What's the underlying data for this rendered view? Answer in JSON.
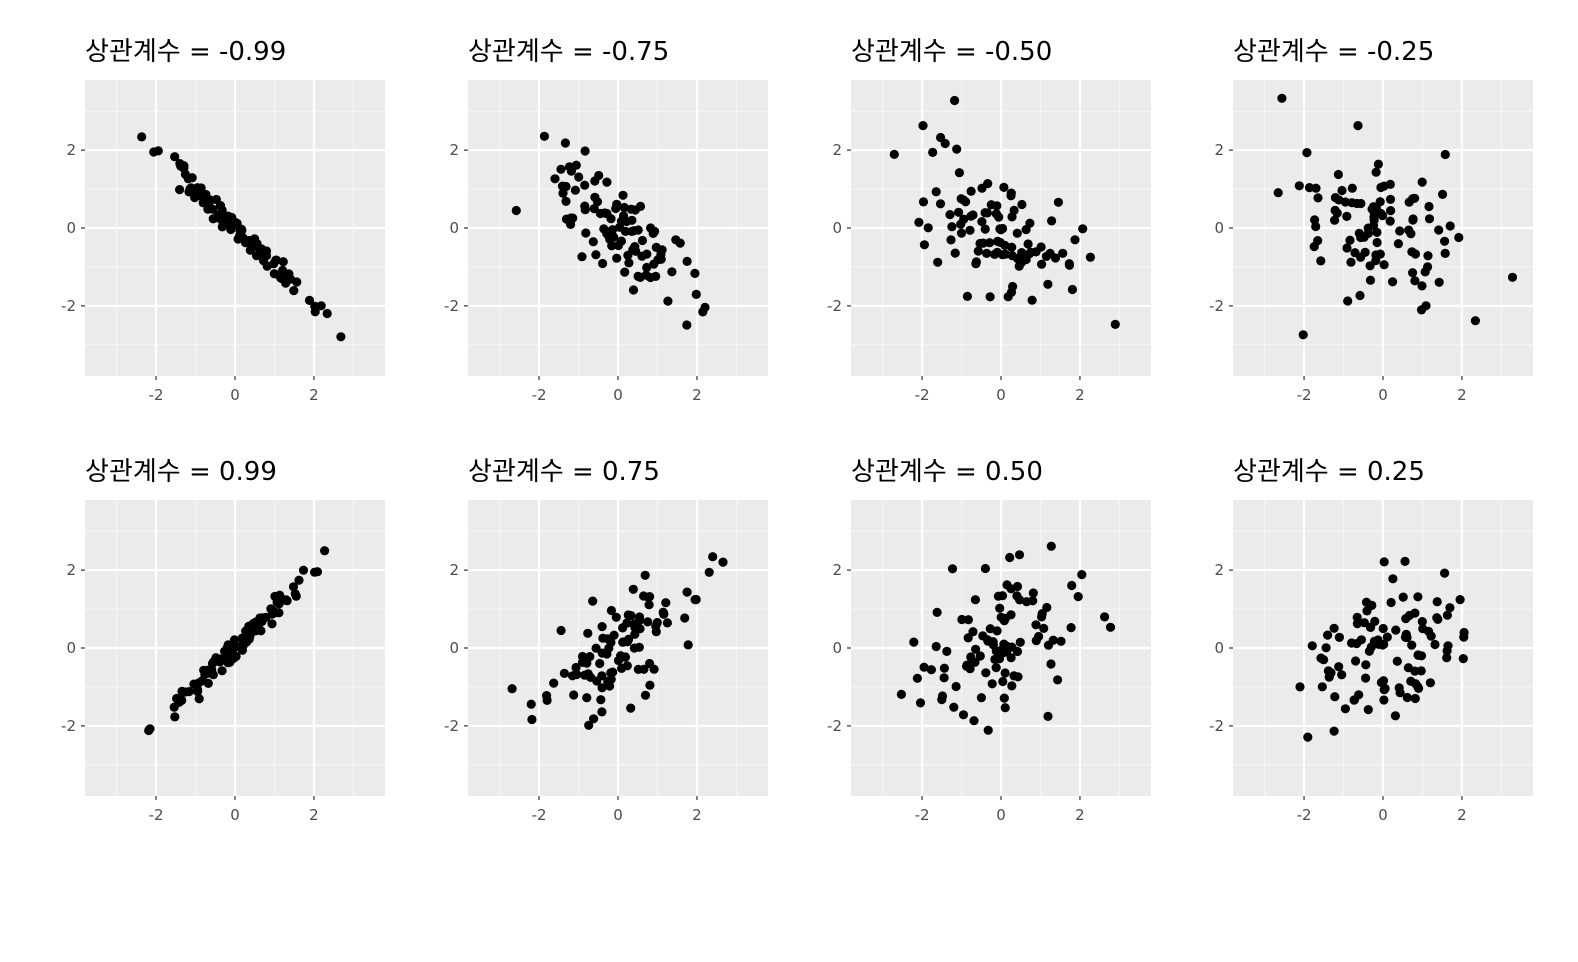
{
  "chart_data": [
    {
      "type": "scatter",
      "title": "상관계수 = -0.99",
      "rho": -0.99,
      "n": 100,
      "seed": 11,
      "xlim": [
        -3.8,
        3.8
      ],
      "ylim": [
        -3.8,
        3.8
      ],
      "xticks": [
        "-2",
        "0",
        "2"
      ],
      "yticks": [
        "2",
        "0",
        "-2"
      ],
      "colors": {
        "point": "#000000",
        "panel": "#ebebeb",
        "grid": "#ffffff"
      },
      "grid": true
    },
    {
      "type": "scatter",
      "title": "상관계수 = -0.75",
      "rho": -0.75,
      "n": 100,
      "seed": 23,
      "xlim": [
        -3.8,
        3.8
      ],
      "ylim": [
        -3.8,
        3.8
      ],
      "xticks": [
        "-2",
        "0",
        "2"
      ],
      "yticks": [
        "2",
        "0",
        "-2"
      ],
      "colors": {
        "point": "#000000",
        "panel": "#ebebeb",
        "grid": "#ffffff"
      },
      "grid": true
    },
    {
      "type": "scatter",
      "title": "상관계수 = -0.50",
      "rho": -0.5,
      "n": 100,
      "seed": 37,
      "xlim": [
        -3.8,
        3.8
      ],
      "ylim": [
        -3.8,
        3.8
      ],
      "xticks": [
        "-2",
        "0",
        "2"
      ],
      "yticks": [
        "2",
        "0",
        "-2"
      ],
      "colors": {
        "point": "#000000",
        "panel": "#ebebeb",
        "grid": "#ffffff"
      },
      "grid": true
    },
    {
      "type": "scatter",
      "title": "상관계수 = -0.25",
      "rho": -0.25,
      "n": 100,
      "seed": 41,
      "xlim": [
        -3.8,
        3.8
      ],
      "ylim": [
        -3.8,
        3.8
      ],
      "xticks": [
        "-2",
        "0",
        "2"
      ],
      "yticks": [
        "2",
        "0",
        "-2"
      ],
      "colors": {
        "point": "#000000",
        "panel": "#ebebeb",
        "grid": "#ffffff"
      },
      "grid": true
    },
    {
      "type": "scatter",
      "title": "상관계수 = 0.99",
      "rho": 0.99,
      "n": 100,
      "seed": 53,
      "xlim": [
        -3.8,
        3.8
      ],
      "ylim": [
        -3.8,
        3.8
      ],
      "xticks": [
        "-2",
        "0",
        "2"
      ],
      "yticks": [
        "2",
        "0",
        "-2"
      ],
      "colors": {
        "point": "#000000",
        "panel": "#ebebeb",
        "grid": "#ffffff"
      },
      "grid": true
    },
    {
      "type": "scatter",
      "title": "상관계수 = 0.75",
      "rho": 0.75,
      "n": 100,
      "seed": 67,
      "xlim": [
        -3.8,
        3.8
      ],
      "ylim": [
        -3.8,
        3.8
      ],
      "xticks": [
        "-2",
        "0",
        "2"
      ],
      "yticks": [
        "2",
        "0",
        "-2"
      ],
      "colors": {
        "point": "#000000",
        "panel": "#ebebeb",
        "grid": "#ffffff"
      },
      "grid": true
    },
    {
      "type": "scatter",
      "title": "상관계수 = 0.50",
      "rho": 0.5,
      "n": 100,
      "seed": 79,
      "xlim": [
        -3.8,
        3.8
      ],
      "ylim": [
        -3.8,
        3.8
      ],
      "xticks": [
        "-2",
        "0",
        "2"
      ],
      "yticks": [
        "2",
        "0",
        "-2"
      ],
      "colors": {
        "point": "#000000",
        "panel": "#ebebeb",
        "grid": "#ffffff"
      },
      "grid": true
    },
    {
      "type": "scatter",
      "title": "상관계수 = 0.25",
      "rho": 0.25,
      "n": 100,
      "seed": 83,
      "xlim": [
        -3.8,
        3.8
      ],
      "ylim": [
        -3.8,
        3.8
      ],
      "xticks": [
        "-2",
        "0",
        "2"
      ],
      "yticks": [
        "2",
        "0",
        "-2"
      ],
      "colors": {
        "point": "#000000",
        "panel": "#ebebeb",
        "grid": "#ffffff"
      },
      "grid": true
    }
  ]
}
